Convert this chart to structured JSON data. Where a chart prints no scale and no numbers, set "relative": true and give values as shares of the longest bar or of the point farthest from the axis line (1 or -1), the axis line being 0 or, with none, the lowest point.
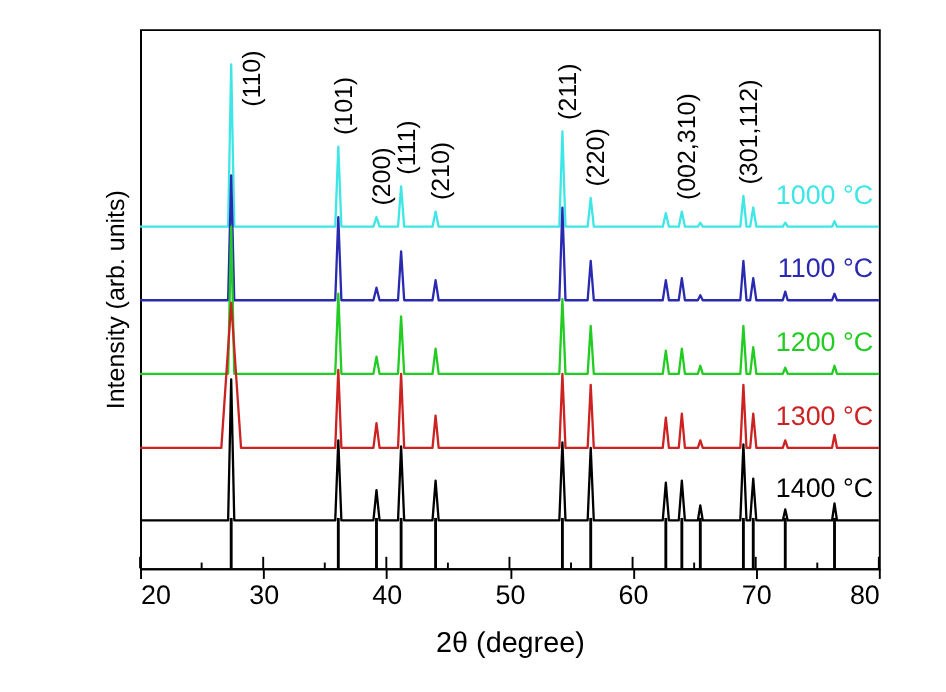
{
  "chart_data": {
    "type": "line",
    "xlabel": "2θ (degree)",
    "ylabel": "Intensity (arb. units)",
    "relative": true,
    "grid": false,
    "tick_labels": "x",
    "marker": "none",
    "line_style": "solid",
    "xlim": [
      20,
      80
    ],
    "xticks": [
      20,
      {
        "value": 25,
        "label": null
      },
      30,
      {
        "value": 35,
        "label": null
      },
      40,
      {
        "value": 45,
        "label": null
      },
      50,
      {
        "value": 55,
        "label": null
      },
      60,
      {
        "value": 65,
        "label": null
      },
      70,
      {
        "value": 75,
        "label": null
      },
      80
    ],
    "x": [
      20,
      27.15,
      27.4,
      27.65,
      35.85,
      36.1,
      36.35,
      38.95,
      39.2,
      39.45,
      40.95,
      41.2,
      41.45,
      43.75,
      44.0,
      44.25,
      54.05,
      54.3,
      54.55,
      56.35,
      56.6,
      56.85,
      62.45,
      62.7,
      62.95,
      63.75,
      64.0,
      64.25,
      65.3,
      65.5,
      65.7,
      68.75,
      69.0,
      69.25,
      69.55,
      69.8,
      70.05,
      72.2,
      72.4,
      72.6,
      76.2,
      76.4,
      76.6,
      80
    ],
    "series": [
      {
        "name": "1000 °C",
        "color": "#3ee6e6",
        "values": [
          0.678,
          0.678,
          1.0,
          0.678,
          0.678,
          0.837,
          0.678,
          0.678,
          0.697,
          0.678,
          0.678,
          0.758,
          0.678,
          0.678,
          0.708,
          0.678,
          0.678,
          0.867,
          0.678,
          0.678,
          0.735,
          0.678,
          0.678,
          0.705,
          0.678,
          0.678,
          0.708,
          0.678,
          0.678,
          0.686,
          0.678,
          0.678,
          0.739,
          0.678,
          0.678,
          0.716,
          0.678,
          0.678,
          0.686,
          0.678,
          0.678,
          0.689,
          0.678,
          0.678
        ]
      },
      {
        "name": "1100 °C",
        "color": "#2a2ab0",
        "values": [
          0.532,
          0.532,
          0.78,
          0.532,
          0.532,
          0.697,
          0.532,
          0.532,
          0.557,
          0.532,
          0.532,
          0.629,
          0.532,
          0.532,
          0.572,
          0.532,
          0.532,
          0.716,
          0.532,
          0.532,
          0.61,
          0.532,
          0.532,
          0.572,
          0.532,
          0.532,
          0.576,
          0.532,
          0.532,
          0.542,
          0.532,
          0.532,
          0.61,
          0.532,
          0.532,
          0.576,
          0.532,
          0.532,
          0.549,
          0.532,
          0.532,
          0.545,
          0.532,
          0.532
        ]
      },
      {
        "name": "1200 °C",
        "color": "#22cc22",
        "values": [
          0.386,
          0.386,
          0.678,
          0.386,
          0.386,
          0.545,
          0.386,
          0.386,
          0.42,
          0.386,
          0.386,
          0.5,
          0.386,
          0.386,
          0.436,
          0.386,
          0.386,
          0.534,
          0.386,
          0.386,
          0.481,
          0.386,
          0.386,
          0.432,
          0.386,
          0.386,
          0.436,
          0.386,
          0.386,
          0.402,
          0.386,
          0.386,
          0.481,
          0.386,
          0.386,
          0.439,
          0.386,
          0.386,
          0.398,
          0.386,
          0.386,
          0.402,
          0.386,
          0.386
        ]
      },
      {
        "name": "1300 °C",
        "color": "#cc2222",
        "x": [
          20,
          26.6,
          27.4,
          28.2,
          35.85,
          36.1,
          36.35,
          38.95,
          39.2,
          39.45,
          40.95,
          41.2,
          41.45,
          43.75,
          44.0,
          44.25,
          54.05,
          54.3,
          54.55,
          56.35,
          56.6,
          56.85,
          62.45,
          62.7,
          62.95,
          63.75,
          64.0,
          64.25,
          65.3,
          65.5,
          65.7,
          68.75,
          69.0,
          69.25,
          69.55,
          69.8,
          70.05,
          72.2,
          72.4,
          72.6,
          76.2,
          76.4,
          76.6,
          80
        ],
        "values": [
          0.239,
          0.239,
          0.527,
          0.239,
          0.239,
          0.394,
          0.239,
          0.239,
          0.288,
          0.239,
          0.239,
          0.386,
          0.239,
          0.239,
          0.303,
          0.239,
          0.239,
          0.386,
          0.239,
          0.239,
          0.364,
          0.239,
          0.239,
          0.299,
          0.239,
          0.239,
          0.307,
          0.239,
          0.239,
          0.254,
          0.239,
          0.239,
          0.364,
          0.239,
          0.239,
          0.307,
          0.239,
          0.239,
          0.254,
          0.239,
          0.239,
          0.265,
          0.239,
          0.239
        ]
      },
      {
        "name": "1400 °C",
        "color": "#000000",
        "values": [
          0.095,
          0.095,
          0.375,
          0.095,
          0.095,
          0.254,
          0.095,
          0.095,
          0.155,
          0.095,
          0.095,
          0.242,
          0.095,
          0.095,
          0.174,
          0.095,
          0.095,
          0.25,
          0.095,
          0.095,
          0.239,
          0.095,
          0.095,
          0.17,
          0.095,
          0.095,
          0.174,
          0.095,
          0.095,
          0.125,
          0.095,
          0.095,
          0.246,
          0.095,
          0.095,
          0.178,
          0.095,
          0.095,
          0.117,
          0.095,
          0.095,
          0.129,
          0.095,
          0.095
        ]
      },
      {
        "type": "bar",
        "color": "#000000",
        "x": [
          27.4,
          36.1,
          39.2,
          41.2,
          44.0,
          54.3,
          56.6,
          62.7,
          64.0,
          65.5,
          69.0,
          69.8,
          72.4,
          76.4
        ],
        "values": [
          0.1,
          0.1,
          0.1,
          0.1,
          0.1,
          0.1,
          0.1,
          0.1,
          0.1,
          0.1,
          0.1,
          0.1,
          0.1,
          0.1
        ]
      }
    ],
    "annotations": [
      {
        "text": "(110)",
        "x": 27.4,
        "y": 1.0
      },
      {
        "text": "(101)",
        "x": 36.1,
        "y": 0.837
      },
      {
        "text": "(200)",
        "x": 39.2,
        "y": 0.697
      },
      {
        "text": "(111)",
        "x": 41.2,
        "y": 0.758
      },
      {
        "text": "(210)",
        "x": 44.0,
        "y": 0.708
      },
      {
        "text": "(211)",
        "x": 54.3,
        "y": 0.867
      },
      {
        "text": "(220)",
        "x": 56.6,
        "y": 0.735
      },
      {
        "text": "(002,310)",
        "x": 64.0,
        "y": 0.708
      },
      {
        "text": "(301,112)",
        "x": 69.0,
        "y": 0.739
      }
    ]
  }
}
